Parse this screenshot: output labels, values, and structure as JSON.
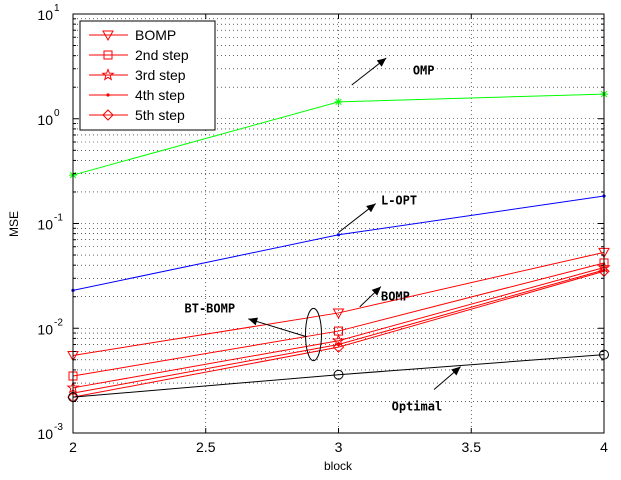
{
  "chart_data": {
    "type": "line",
    "xlabel": "block",
    "ylabel": "MSE",
    "xlim": [
      2,
      4
    ],
    "ylim": [
      0.001,
      10
    ],
    "yscale": "log",
    "grid": true,
    "x_ticks": [
      "2",
      "2.5",
      "3",
      "3.5",
      "4"
    ],
    "y_ticks": [
      {
        "base": "10",
        "exp": "-3"
      },
      {
        "base": "10",
        "exp": "-2"
      },
      {
        "base": "10",
        "exp": "-1"
      },
      {
        "base": "10",
        "exp": "0"
      },
      {
        "base": "10",
        "exp": "1"
      }
    ],
    "legend": {
      "position": "top-left",
      "entries": [
        "BOMP",
        "2nd step",
        "3rd step",
        "4th step",
        "5th step"
      ]
    },
    "x": [
      2,
      3,
      4
    ],
    "series": [
      {
        "name": "OMP",
        "color": "#00ff00",
        "marker": "asterisk",
        "values": [
          0.29,
          1.45,
          1.72
        ]
      },
      {
        "name": "L-OPT",
        "color": "#0000ff",
        "marker": "dot",
        "values": [
          0.023,
          0.078,
          0.183
        ]
      },
      {
        "name": "BOMP",
        "color": "#ff0000",
        "marker": "triangle-down",
        "values": [
          0.0055,
          0.014,
          0.053
        ]
      },
      {
        "name": "2nd step",
        "color": "#ff0000",
        "marker": "square",
        "values": [
          0.0035,
          0.0094,
          0.042
        ]
      },
      {
        "name": "3rd step",
        "color": "#ff0000",
        "marker": "star",
        "values": [
          0.0027,
          0.0076,
          0.038
        ]
      },
      {
        "name": "4th step",
        "color": "#ff0000",
        "marker": "dot",
        "values": [
          0.0024,
          0.007,
          0.036
        ]
      },
      {
        "name": "5th step",
        "color": "#ff0000",
        "marker": "diamond",
        "values": [
          0.0022,
          0.0066,
          0.035
        ]
      },
      {
        "name": "Optimal",
        "color": "#000000",
        "marker": "circle",
        "values": [
          0.0022,
          0.0036,
          0.0056
        ]
      }
    ],
    "annotations": [
      {
        "text": "OMP",
        "x": 3.28,
        "y": 2.9,
        "arrow_from": [
          3.05,
          2.1
        ],
        "arrow_to": [
          3.18,
          3.8
        ]
      },
      {
        "text": "L-OPT",
        "x": 3.16,
        "y": 0.165,
        "arrow_from": [
          3.0,
          0.082
        ],
        "arrow_to": [
          3.14,
          0.155
        ]
      },
      {
        "text": "BOMP",
        "x": 3.16,
        "y": 0.02,
        "arrow_from": [
          3.08,
          0.016
        ],
        "arrow_to": [
          3.16,
          0.025
        ]
      },
      {
        "text": "BT-BOMP",
        "x": 2.42,
        "y": 0.0155,
        "arrow_from": [
          2.88,
          0.0083
        ],
        "arrow_to": [
          2.66,
          0.0123
        ]
      },
      {
        "text": "Optimal",
        "x": 3.2,
        "y": 0.0018,
        "arrow_from": [
          3.36,
          0.0026
        ],
        "arrow_to": [
          3.46,
          0.0043
        ]
      }
    ]
  }
}
